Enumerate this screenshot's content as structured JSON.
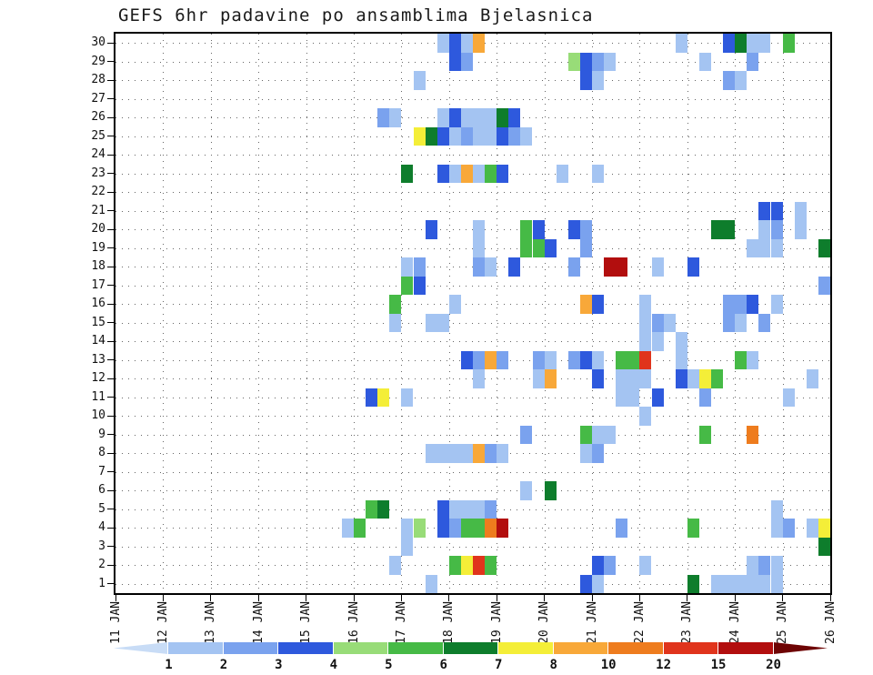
{
  "chart_data": {
    "type": "heatmap",
    "title": "GEFS 6hr padavine po ansamblima Bjelasnica",
    "x_tick_labels": [
      "11 JAN",
      "12 JAN",
      "13 JAN",
      "14 JAN",
      "15 JAN",
      "16 JAN",
      "17 JAN",
      "18 JAN",
      "19 JAN",
      "20 JAN",
      "21 JAN",
      "22 JAN",
      "23 JAN",
      "24 JAN",
      "25 JAN",
      "26 JAN"
    ],
    "y_tick_labels": [
      "1",
      "2",
      "3",
      "4",
      "5",
      "6",
      "7",
      "8",
      "9",
      "10",
      "11",
      "12",
      "13",
      "14",
      "15",
      "16",
      "17",
      "18",
      "19",
      "20",
      "21",
      "22",
      "23",
      "24",
      "25",
      "26",
      "27",
      "28",
      "29",
      "30"
    ],
    "steps_per_day": 4,
    "n_cols": 60,
    "n_rows": 30,
    "grid": "dotted",
    "legend": {
      "tick_labels": [
        "1",
        "2",
        "3",
        "4",
        "5",
        "6",
        "7",
        "8",
        "10",
        "12",
        "15",
        "20"
      ],
      "colors": [
        "#c8dcf6",
        "#a4c4f2",
        "#7aa2ee",
        "#2e59dd",
        "#98dc78",
        "#46ba46",
        "#0e7d2c",
        "#f4ee38",
        "#f8a839",
        "#ee7c1e",
        "#e0341c",
        "#b20e0e",
        "#6e0404"
      ]
    },
    "cells": [
      [
        30,
        27,
        1
      ],
      [
        30,
        28,
        3
      ],
      [
        30,
        29,
        1
      ],
      [
        30,
        30,
        8
      ],
      [
        30,
        47,
        1
      ],
      [
        30,
        51,
        3
      ],
      [
        30,
        52,
        6
      ],
      [
        30,
        53,
        1
      ],
      [
        30,
        54,
        1
      ],
      [
        30,
        56,
        5
      ],
      [
        29,
        28,
        3
      ],
      [
        29,
        29,
        2
      ],
      [
        29,
        38,
        4
      ],
      [
        29,
        39,
        3
      ],
      [
        29,
        40,
        2
      ],
      [
        29,
        41,
        1
      ],
      [
        29,
        49,
        1
      ],
      [
        29,
        53,
        2
      ],
      [
        28,
        25,
        1
      ],
      [
        28,
        39,
        3
      ],
      [
        28,
        40,
        1
      ],
      [
        28,
        51,
        2
      ],
      [
        28,
        52,
        1
      ],
      [
        26,
        22,
        2
      ],
      [
        26,
        23,
        1
      ],
      [
        26,
        27,
        1
      ],
      [
        26,
        28,
        3
      ],
      [
        26,
        29,
        1
      ],
      [
        26,
        30,
        1
      ],
      [
        26,
        31,
        1
      ],
      [
        26,
        32,
        6
      ],
      [
        26,
        33,
        3
      ],
      [
        25,
        25,
        7
      ],
      [
        25,
        26,
        6
      ],
      [
        25,
        27,
        3
      ],
      [
        25,
        28,
        1
      ],
      [
        25,
        29,
        2
      ],
      [
        25,
        30,
        1
      ],
      [
        25,
        31,
        1
      ],
      [
        25,
        32,
        3
      ],
      [
        25,
        33,
        2
      ],
      [
        25,
        34,
        1
      ],
      [
        23,
        24,
        6
      ],
      [
        23,
        27,
        3
      ],
      [
        23,
        28,
        1
      ],
      [
        23,
        29,
        8
      ],
      [
        23,
        30,
        1
      ],
      [
        23,
        31,
        5
      ],
      [
        23,
        32,
        3
      ],
      [
        23,
        37,
        1
      ],
      [
        23,
        40,
        1
      ],
      [
        21,
        54,
        3
      ],
      [
        21,
        55,
        3
      ],
      [
        21,
        57,
        1
      ],
      [
        20,
        26,
        3
      ],
      [
        20,
        30,
        1
      ],
      [
        20,
        34,
        5
      ],
      [
        20,
        35,
        3
      ],
      [
        20,
        38,
        3
      ],
      [
        20,
        39,
        2
      ],
      [
        20,
        50,
        6
      ],
      [
        20,
        51,
        6
      ],
      [
        20,
        54,
        1
      ],
      [
        20,
        55,
        2
      ],
      [
        20,
        57,
        1
      ],
      [
        19,
        30,
        1
      ],
      [
        19,
        34,
        5
      ],
      [
        19,
        35,
        5
      ],
      [
        19,
        36,
        3
      ],
      [
        19,
        39,
        2
      ],
      [
        19,
        53,
        1
      ],
      [
        19,
        54,
        1
      ],
      [
        19,
        55,
        1
      ],
      [
        19,
        59,
        6
      ],
      [
        18,
        24,
        1
      ],
      [
        18,
        25,
        2
      ],
      [
        18,
        30,
        2
      ],
      [
        18,
        31,
        1
      ],
      [
        18,
        33,
        3
      ],
      [
        18,
        38,
        2
      ],
      [
        18,
        41,
        11
      ],
      [
        18,
        42,
        11
      ],
      [
        18,
        45,
        1
      ],
      [
        18,
        48,
        3
      ],
      [
        17,
        24,
        5
      ],
      [
        17,
        25,
        3
      ],
      [
        17,
        59,
        2
      ],
      [
        16,
        23,
        5
      ],
      [
        16,
        28,
        1
      ],
      [
        16,
        39,
        8
      ],
      [
        16,
        40,
        3
      ],
      [
        16,
        44,
        1
      ],
      [
        16,
        51,
        2
      ],
      [
        16,
        52,
        2
      ],
      [
        16,
        53,
        3
      ],
      [
        16,
        55,
        1
      ],
      [
        15,
        23,
        1
      ],
      [
        15,
        26,
        1
      ],
      [
        15,
        27,
        1
      ],
      [
        15,
        44,
        1
      ],
      [
        15,
        45,
        2
      ],
      [
        15,
        46,
        1
      ],
      [
        15,
        51,
        2
      ],
      [
        15,
        52,
        1
      ],
      [
        15,
        54,
        2
      ],
      [
        14,
        44,
        1
      ],
      [
        14,
        45,
        1
      ],
      [
        14,
        47,
        1
      ],
      [
        13,
        29,
        3
      ],
      [
        13,
        30,
        2
      ],
      [
        13,
        31,
        8
      ],
      [
        13,
        32,
        2
      ],
      [
        13,
        35,
        2
      ],
      [
        13,
        36,
        1
      ],
      [
        13,
        38,
        2
      ],
      [
        13,
        39,
        3
      ],
      [
        13,
        40,
        1
      ],
      [
        13,
        42,
        5
      ],
      [
        13,
        43,
        5
      ],
      [
        13,
        44,
        10
      ],
      [
        13,
        47,
        1
      ],
      [
        13,
        52,
        5
      ],
      [
        13,
        53,
        1
      ],
      [
        12,
        30,
        1
      ],
      [
        12,
        35,
        1
      ],
      [
        12,
        36,
        8
      ],
      [
        12,
        40,
        3
      ],
      [
        12,
        42,
        1
      ],
      [
        12,
        43,
        1
      ],
      [
        12,
        44,
        1
      ],
      [
        12,
        47,
        3
      ],
      [
        12,
        48,
        1
      ],
      [
        12,
        49,
        7
      ],
      [
        12,
        50,
        5
      ],
      [
        12,
        58,
        1
      ],
      [
        11,
        21,
        3
      ],
      [
        11,
        22,
        7
      ],
      [
        11,
        24,
        1
      ],
      [
        11,
        42,
        1
      ],
      [
        11,
        43,
        1
      ],
      [
        11,
        45,
        3
      ],
      [
        11,
        49,
        2
      ],
      [
        11,
        56,
        1
      ],
      [
        10,
        44,
        1
      ],
      [
        9,
        34,
        2
      ],
      [
        9,
        39,
        5
      ],
      [
        9,
        40,
        1
      ],
      [
        9,
        41,
        1
      ],
      [
        9,
        49,
        5
      ],
      [
        9,
        53,
        9
      ],
      [
        8,
        26,
        1
      ],
      [
        8,
        27,
        1
      ],
      [
        8,
        28,
        1
      ],
      [
        8,
        29,
        1
      ],
      [
        8,
        30,
        8
      ],
      [
        8,
        31,
        2
      ],
      [
        8,
        32,
        1
      ],
      [
        8,
        39,
        1
      ],
      [
        8,
        40,
        2
      ],
      [
        6,
        34,
        1
      ],
      [
        6,
        36,
        6
      ],
      [
        5,
        21,
        5
      ],
      [
        5,
        22,
        6
      ],
      [
        5,
        27,
        3
      ],
      [
        5,
        28,
        1
      ],
      [
        5,
        29,
        1
      ],
      [
        5,
        30,
        1
      ],
      [
        5,
        31,
        2
      ],
      [
        5,
        55,
        1
      ],
      [
        4,
        19,
        1
      ],
      [
        4,
        20,
        5
      ],
      [
        4,
        24,
        1
      ],
      [
        4,
        25,
        4
      ],
      [
        4,
        27,
        3
      ],
      [
        4,
        28,
        2
      ],
      [
        4,
        29,
        5
      ],
      [
        4,
        30,
        5
      ],
      [
        4,
        31,
        9
      ],
      [
        4,
        32,
        11
      ],
      [
        4,
        42,
        2
      ],
      [
        4,
        48,
        5
      ],
      [
        4,
        55,
        1
      ],
      [
        4,
        56,
        2
      ],
      [
        4,
        58,
        1
      ],
      [
        4,
        59,
        7
      ],
      [
        3,
        24,
        1
      ],
      [
        3,
        59,
        6
      ],
      [
        2,
        23,
        1
      ],
      [
        2,
        28,
        5
      ],
      [
        2,
        29,
        7
      ],
      [
        2,
        30,
        10
      ],
      [
        2,
        31,
        5
      ],
      [
        2,
        40,
        3
      ],
      [
        2,
        41,
        2
      ],
      [
        2,
        44,
        1
      ],
      [
        2,
        53,
        1
      ],
      [
        2,
        54,
        2
      ],
      [
        2,
        55,
        1
      ],
      [
        1,
        26,
        1
      ],
      [
        1,
        39,
        3
      ],
      [
        1,
        40,
        1
      ],
      [
        1,
        48,
        6
      ],
      [
        1,
        50,
        1
      ],
      [
        1,
        51,
        1
      ],
      [
        1,
        52,
        1
      ],
      [
        1,
        53,
        1
      ],
      [
        1,
        54,
        1
      ],
      [
        1,
        55,
        1
      ]
    ]
  }
}
